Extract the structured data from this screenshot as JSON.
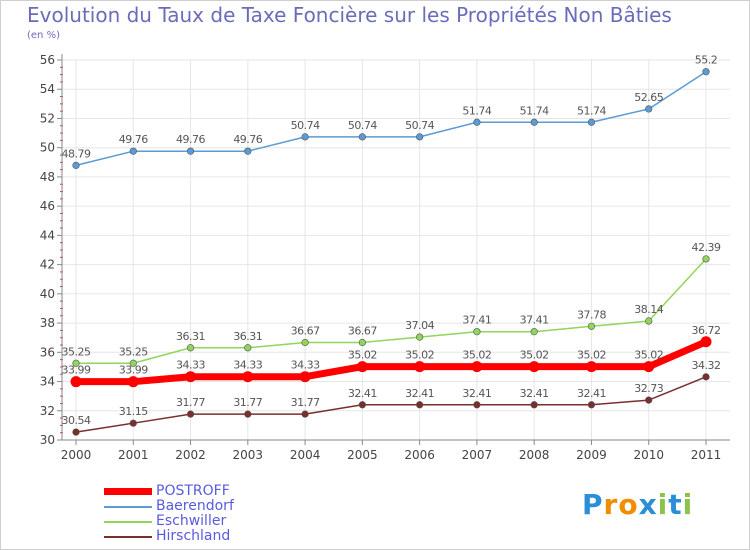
{
  "title": "Evolution du Taux de Taxe Foncière sur les Propriétés Non Bâties",
  "subtitle": "(en %)",
  "colors": {
    "POSTROFF": "#ff0000",
    "Baerendorf": "#5b9bd5",
    "Eschwiller": "#8fd65a",
    "Hirschland": "#7a2e2e",
    "axis": "#888888",
    "grid": "#e6e6e6",
    "label": "#444444"
  },
  "logo": {
    "letters": [
      "P",
      "r",
      "o",
      "x",
      "i",
      "t",
      "i"
    ],
    "letter_colors": [
      "#2a8fd6",
      "#f28c00",
      "#f28c00",
      "#2a8fd6",
      "#8bc34a",
      "#2a8fd6",
      "#8bc34a"
    ]
  },
  "legend": [
    {
      "name": "POSTROFF",
      "color": "#ff0000",
      "thick": true
    },
    {
      "name": "Baerendorf",
      "color": "#5b9bd5",
      "thick": false
    },
    {
      "name": "Eschwiller",
      "color": "#8fd65a",
      "thick": false
    },
    {
      "name": "Hirschland",
      "color": "#7a2e2e",
      "thick": false
    }
  ],
  "chart_data": {
    "type": "line",
    "title": "Evolution du Taux de Taxe Foncière sur les Propriétés Non Bâties",
    "ylabel": "(en %)",
    "xlabel": "",
    "x": [
      "2000",
      "2001",
      "2002",
      "2003",
      "2004",
      "2005",
      "2006",
      "2007",
      "2008",
      "2009",
      "2010",
      "2011"
    ],
    "ylim": [
      30,
      56
    ],
    "yticks": [
      30,
      32,
      34,
      36,
      38,
      40,
      42,
      44,
      46,
      48,
      50,
      52,
      54,
      56
    ],
    "grid": true,
    "legend_position": "bottom-left",
    "series": [
      {
        "name": "Baerendorf",
        "values": [
          48.79,
          49.76,
          49.76,
          49.76,
          50.74,
          50.74,
          50.74,
          51.74,
          51.74,
          51.74,
          52.65,
          55.2
        ],
        "labels": [
          "48.79",
          "49.76",
          "49.76",
          "49.76",
          "50.74",
          "50.74",
          "50.74",
          "51.74",
          "51.74",
          "51.74",
          "52.65",
          "55.2"
        ]
      },
      {
        "name": "Eschwiller",
        "values": [
          35.25,
          35.25,
          36.31,
          36.31,
          36.67,
          36.67,
          37.04,
          37.41,
          37.41,
          37.78,
          38.14,
          42.39
        ],
        "labels": [
          "35.25",
          "35.25",
          "36.31",
          "36.31",
          "36.67",
          "36.67",
          "37.04",
          "37.41",
          "37.41",
          "37.78",
          "38.14",
          "42.39"
        ]
      },
      {
        "name": "POSTROFF",
        "values": [
          33.99,
          33.99,
          34.33,
          34.33,
          34.33,
          35.02,
          35.02,
          35.02,
          35.02,
          35.02,
          35.02,
          36.72
        ],
        "labels": [
          "33.99",
          "33.99",
          "34.33",
          "34.33",
          "34.33",
          "35.02",
          "35.02",
          "35.02",
          "35.02",
          "35.02",
          "35.02",
          "36.72"
        ]
      },
      {
        "name": "Hirschland",
        "values": [
          30.54,
          31.15,
          31.77,
          31.77,
          31.77,
          32.41,
          32.41,
          32.41,
          32.41,
          32.41,
          32.73,
          34.32
        ],
        "labels": [
          "30.54",
          "31.15",
          "31.77",
          "31.77",
          "31.77",
          "32.41",
          "32.41",
          "32.41",
          "32.41",
          "32.41",
          "32.73",
          "34.32"
        ]
      }
    ]
  }
}
